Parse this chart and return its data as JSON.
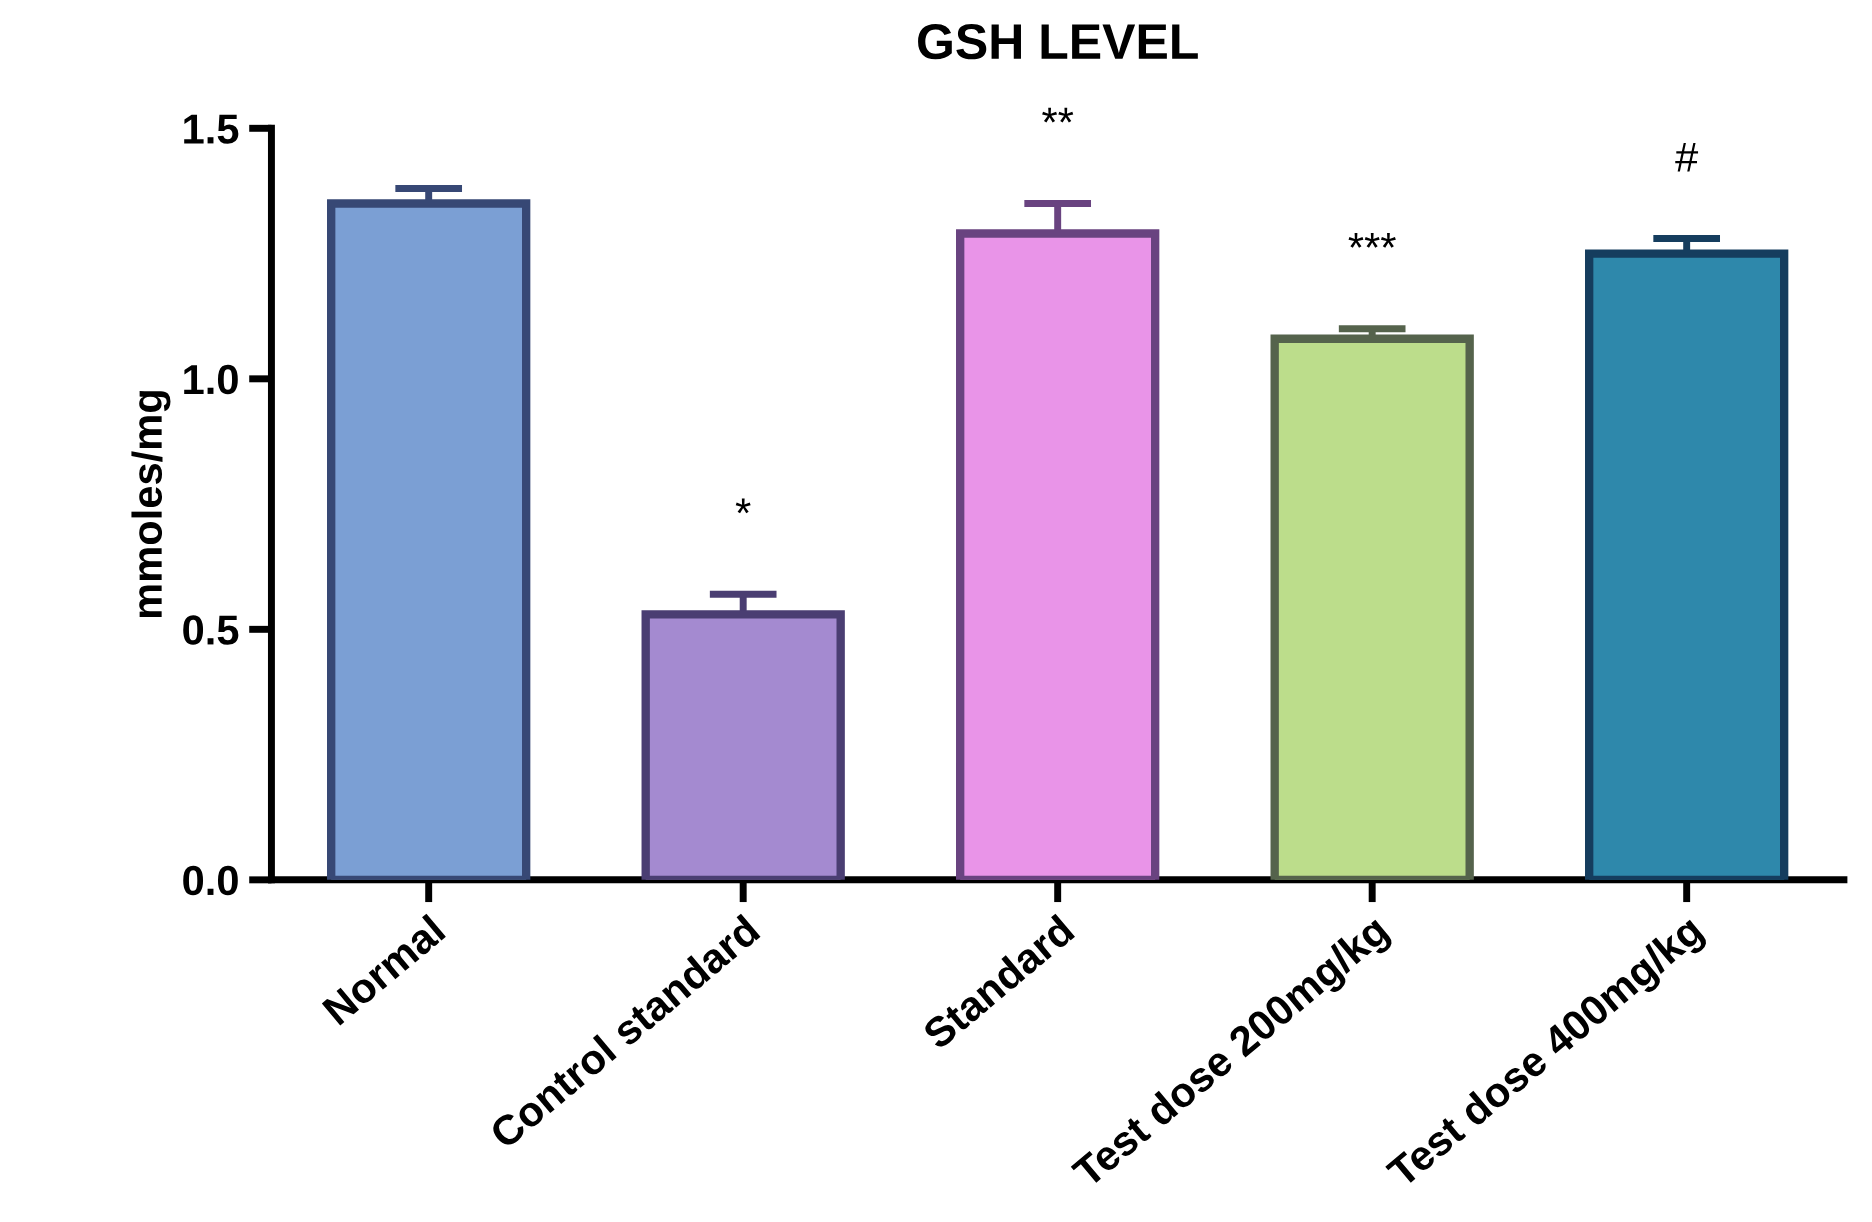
{
  "chart_data": {
    "type": "bar",
    "title": "GSH LEVEL",
    "ylabel": "mmoles/mg",
    "categories": [
      "Normal",
      "Control standard",
      "Standard",
      "Test dose 200mg/kg",
      "Test dose 400mg/kg"
    ],
    "values": [
      1.35,
      0.53,
      1.29,
      1.08,
      1.25
    ],
    "errors": [
      0.03,
      0.04,
      0.06,
      0.02,
      0.03
    ],
    "colors": [
      "#7b9fd4",
      "#a48ad0",
      "#e994e8",
      "#bcdd8b",
      "#2e88ab"
    ],
    "ylim": [
      0,
      1.5
    ],
    "yticks": [
      {
        "value": 0,
        "label": "0.0"
      },
      {
        "value": 0.5,
        "label": "0.5"
      },
      {
        "value": 1,
        "label": "1.0"
      },
      {
        "value": 1.5,
        "label": "1.5"
      }
    ],
    "grid": false,
    "value_labels": [
      null,
      "*",
      "**",
      "***",
      "#"
    ]
  }
}
